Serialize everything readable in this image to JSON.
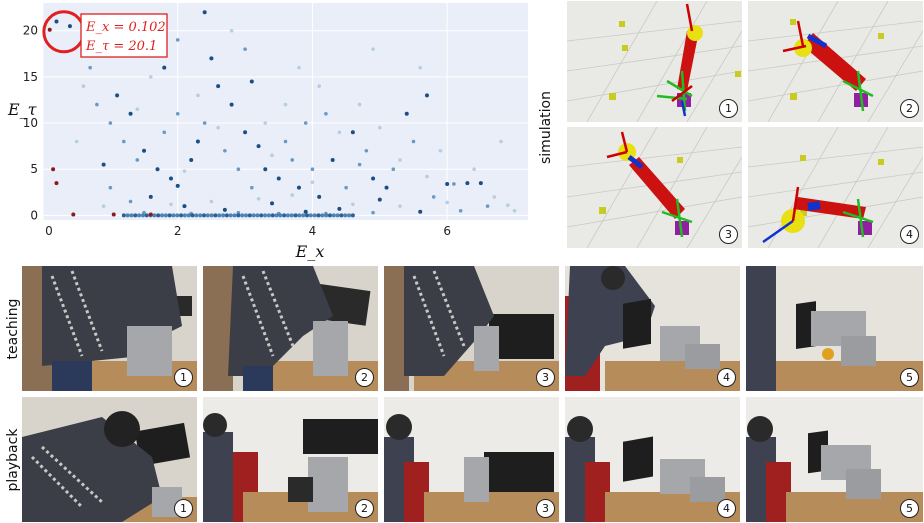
{
  "chart_data": {
    "type": "scatter",
    "xlabel": "E_x",
    "ylabel": "E_τ",
    "xlim": [
      0,
      7.2
    ],
    "ylim": [
      -0.5,
      23
    ],
    "xticks": [
      0,
      2,
      4,
      6
    ],
    "yticks": [
      0,
      5,
      10,
      15,
      20
    ],
    "x_tick_labels": [
      "0",
      "2",
      "4",
      "6"
    ],
    "y_tick_labels": [
      "0",
      "5",
      "10",
      "15",
      "20"
    ],
    "grid": true,
    "highlight": {
      "x": 0.102,
      "y": 20.1,
      "label_x": "E_x = 0.102",
      "label_tau": "E_τ = 20.1",
      "color": "#e02020"
    },
    "points_dark": [
      [
        0.2,
        21
      ],
      [
        0.4,
        20.5
      ],
      [
        1.1,
        13
      ],
      [
        1.3,
        11
      ],
      [
        1.5,
        7
      ],
      [
        1.7,
        5
      ],
      [
        1.9,
        4
      ],
      [
        2.0,
        3.2
      ],
      [
        2.2,
        6
      ],
      [
        2.3,
        8
      ],
      [
        2.5,
        17
      ],
      [
        2.6,
        14
      ],
      [
        2.8,
        12
      ],
      [
        3.0,
        9
      ],
      [
        3.2,
        7.5
      ],
      [
        3.3,
        5
      ],
      [
        3.5,
        4
      ],
      [
        3.8,
        3
      ],
      [
        4.1,
        2
      ],
      [
        4.3,
        6
      ],
      [
        4.6,
        9
      ],
      [
        4.9,
        4
      ],
      [
        5.1,
        3
      ],
      [
        5.4,
        11
      ],
      [
        5.7,
        13
      ],
      [
        6.0,
        3.4
      ],
      [
        6.3,
        3.5
      ],
      [
        6.5,
        3.5
      ],
      [
        0.9,
        5.5
      ],
      [
        1.6,
        2
      ],
      [
        2.1,
        1
      ],
      [
        2.7,
        0.6
      ],
      [
        3.4,
        1.3
      ],
      [
        3.9,
        0.4
      ],
      [
        4.4,
        0.7
      ],
      [
        5.0,
        1.7
      ],
      [
        5.6,
        0.4
      ],
      [
        2.4,
        22
      ],
      [
        1.8,
        16
      ],
      [
        3.1,
        14.5
      ]
    ],
    "points_mid": [
      [
        0.7,
        16
      ],
      [
        0.8,
        12
      ],
      [
        1.0,
        10
      ],
      [
        1.2,
        8
      ],
      [
        1.4,
        6
      ],
      [
        1.8,
        9
      ],
      [
        2.0,
        11
      ],
      [
        2.4,
        10
      ],
      [
        2.7,
        7
      ],
      [
        2.9,
        5
      ],
      [
        3.1,
        3
      ],
      [
        3.6,
        8
      ],
      [
        3.7,
        6
      ],
      [
        4.0,
        5
      ],
      [
        4.2,
        11
      ],
      [
        4.5,
        3
      ],
      [
        4.8,
        7
      ],
      [
        5.2,
        5
      ],
      [
        5.5,
        8
      ],
      [
        5.8,
        2
      ],
      [
        6.1,
        3.4
      ],
      [
        6.6,
        1
      ],
      [
        1.5,
        0.3
      ],
      [
        2.2,
        0.2
      ],
      [
        2.9,
        0.3
      ],
      [
        3.5,
        0.2
      ],
      [
        4.2,
        0.2
      ],
      [
        4.9,
        0.3
      ],
      [
        6.2,
        0.5
      ],
      [
        1.0,
        3
      ],
      [
        1.3,
        1.5
      ],
      [
        3.0,
        18
      ],
      [
        2.0,
        19
      ],
      [
        3.9,
        10
      ],
      [
        4.7,
        5.5
      ]
    ],
    "points_light": [
      [
        0.5,
        8
      ],
      [
        0.6,
        14
      ],
      [
        1.1,
        18
      ],
      [
        1.6,
        15
      ],
      [
        2.3,
        13
      ],
      [
        2.6,
        9.5
      ],
      [
        3.3,
        10
      ],
      [
        3.6,
        12
      ],
      [
        4.1,
        14
      ],
      [
        4.4,
        9
      ],
      [
        4.7,
        12
      ],
      [
        5.0,
        9.5
      ],
      [
        5.3,
        6
      ],
      [
        5.9,
        7
      ],
      [
        6.4,
        5
      ],
      [
        6.7,
        2
      ],
      [
        7.0,
        0.5
      ],
      [
        6.8,
        8
      ],
      [
        5.6,
        16
      ],
      [
        4.9,
        18
      ],
      [
        3.8,
        16
      ],
      [
        1.2,
        20
      ],
      [
        2.8,
        20
      ],
      [
        0.9,
        1
      ],
      [
        1.9,
        1.2
      ],
      [
        2.5,
        1.5
      ],
      [
        3.2,
        1.8
      ],
      [
        4.6,
        1.2
      ],
      [
        5.3,
        1.0
      ],
      [
        6.0,
        1.4
      ],
      [
        6.9,
        1.1
      ],
      [
        3.7,
        2.2
      ],
      [
        4.0,
        3.6
      ],
      [
        5.7,
        4.2
      ],
      [
        2.1,
        4.8
      ],
      [
        1.4,
        11.5
      ],
      [
        3.4,
        6.5
      ]
    ],
    "points_red": [
      [
        0.1,
        20.1
      ],
      [
        0.15,
        5
      ],
      [
        0.2,
        3.5
      ],
      [
        0.45,
        0.1
      ],
      [
        1.05,
        0.1
      ],
      [
        1.6,
        0.1
      ]
    ],
    "base_cluster": {
      "x_start": 1.2,
      "x_end": 4.6,
      "y": 0
    }
  },
  "simulation": {
    "label": "simulation",
    "panels": [
      {
        "badge": "1"
      },
      {
        "badge": "2"
      },
      {
        "badge": "3"
      },
      {
        "badge": "4"
      }
    ]
  },
  "teaching": {
    "label": "teaching",
    "frames": [
      {
        "badge": "1"
      },
      {
        "badge": "2"
      },
      {
        "badge": "3"
      },
      {
        "badge": "4"
      },
      {
        "badge": "5"
      }
    ]
  },
  "playback": {
    "label": "playback",
    "frames": [
      {
        "badge": "1"
      },
      {
        "badge": "2"
      },
      {
        "badge": "3"
      },
      {
        "badge": "4"
      },
      {
        "badge": "5"
      }
    ]
  }
}
